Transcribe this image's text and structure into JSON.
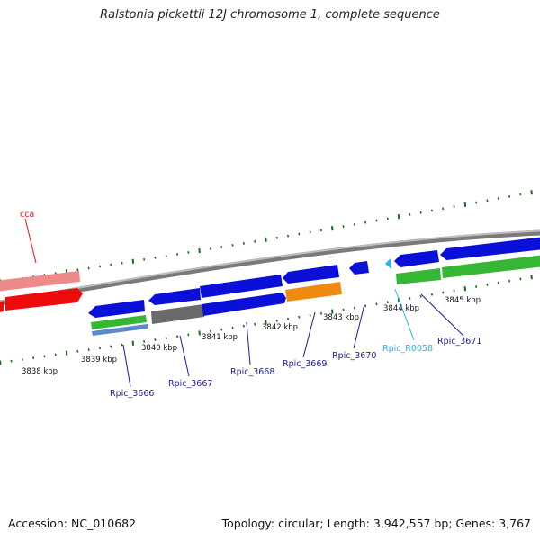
{
  "title": "Ralstonia pickettii 12J chromosome 1, complete sequence",
  "footer": {
    "accession": "Accession: NC_010682",
    "summary": "Topology: circular; Length: 3,942,557 bp; Genes: 3,767"
  },
  "colors": {
    "backbone": "#8c8c8c",
    "gene_blue": "#0a10d8",
    "gene_green": "#35b735",
    "gene_gray": "#6a6a6a",
    "gene_orange": "#f08a12",
    "gene_red": "#ee0b0b",
    "gene_pink": "#ee8a8a",
    "gene_steelblue": "#5a8ac8",
    "trna_cyan": "#22b8e8",
    "label_dark": "#1a1aa0",
    "label_cyan": "#22b8e8",
    "label_red": "#ee1111",
    "tick_green": "#1d6b1d"
  },
  "kbp_labels": [
    "3838 kbp",
    "3839 kbp",
    "3840 kbp",
    "3841 kbp",
    "3842 kbp",
    "3843 kbp",
    "3844 kbp",
    "3845 kbp"
  ],
  "gene_labels": [
    "cca",
    "Rpic_3666",
    "Rpic_3667",
    "Rpic_3668",
    "Rpic_3669",
    "Rpic_3670",
    "Rpic_R0058",
    "Rpic_3671"
  ]
}
